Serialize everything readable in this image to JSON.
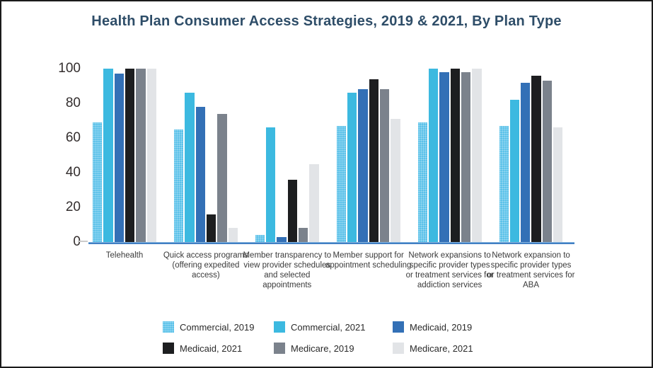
{
  "chart_data": {
    "type": "bar",
    "title": "Health Plan Consumer Access Strategies, 2019 & 2021, By Plan Type",
    "categories": [
      "Telehealth",
      "Quick access programs (offering expedited access)",
      "Member transparency to view provider schedules and selected appointments",
      "Member support for appointment scheduling",
      "Network expansions to specific provider types or treatment services for addiction services",
      "Network expansion to specific provider types or treatment services for ABA"
    ],
    "series": [
      {
        "name": "Commercial, 2019",
        "color": "#5ac1e9",
        "pattern": "dots",
        "values": [
          69,
          65,
          4,
          67,
          69,
          67
        ]
      },
      {
        "name": "Commercial, 2021",
        "color": "#3cb9e0",
        "pattern": "solid",
        "values": [
          100,
          86,
          66,
          86,
          100,
          82
        ]
      },
      {
        "name": "Medicaid, 2019",
        "color": "#3370b6",
        "pattern": "solid",
        "values": [
          97,
          78,
          3,
          88,
          98,
          92
        ]
      },
      {
        "name": "Medicaid, 2021",
        "color": "#1d1e20",
        "pattern": "solid",
        "values": [
          100,
          16,
          36,
          94,
          100,
          96
        ]
      },
      {
        "name": "Medicare, 2019",
        "color": "#7b828c",
        "pattern": "solid",
        "values": [
          100,
          74,
          8,
          88,
          98,
          93
        ]
      },
      {
        "name": "Medicare, 2021",
        "color": "#e2e4e7",
        "pattern": "solid",
        "values": [
          100,
          8,
          45,
          71,
          100,
          66
        ]
      }
    ],
    "xlabel": "",
    "ylabel": "",
    "yticks": [
      0,
      20,
      40,
      60,
      80,
      100
    ],
    "ylim": [
      0,
      100
    ],
    "grid": false,
    "legend_position": "bottom"
  },
  "colors": {
    "title": "#2e4d68",
    "tick_label": "#332e2e",
    "category_label": "#3a3a3a",
    "axis_line": "#4180c4",
    "background": "#ffffff",
    "frame_border": "#1a1a1a"
  }
}
